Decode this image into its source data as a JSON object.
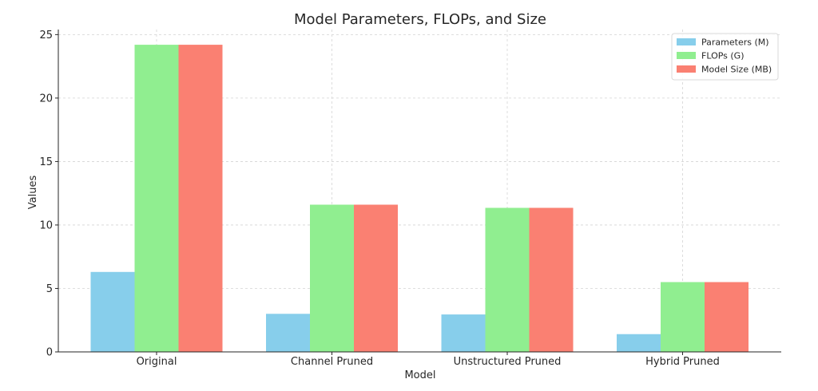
{
  "chart_data": {
    "type": "bar",
    "title": "Model Parameters, FLOPs, and Size",
    "xlabel": "Model",
    "ylabel": "Values",
    "categories": [
      "Original",
      "Channel Pruned",
      "Unstructured Pruned",
      "Hybrid Pruned"
    ],
    "series": [
      {
        "name": "Parameters (M)",
        "color": "#87ceeb",
        "values": [
          6.3,
          3.0,
          2.95,
          1.4
        ]
      },
      {
        "name": "FLOPs (G)",
        "color": "#90ee90",
        "values": [
          24.2,
          11.6,
          11.35,
          5.5
        ]
      },
      {
        "name": "Model Size (MB)",
        "color": "#fa8072",
        "values": [
          24.2,
          11.6,
          11.35,
          5.5
        ]
      }
    ],
    "ylim": [
      0,
      25.4
    ],
    "yticks": [
      0,
      5,
      10,
      15,
      20,
      25
    ],
    "grid": true,
    "legend_position": "top-right"
  }
}
